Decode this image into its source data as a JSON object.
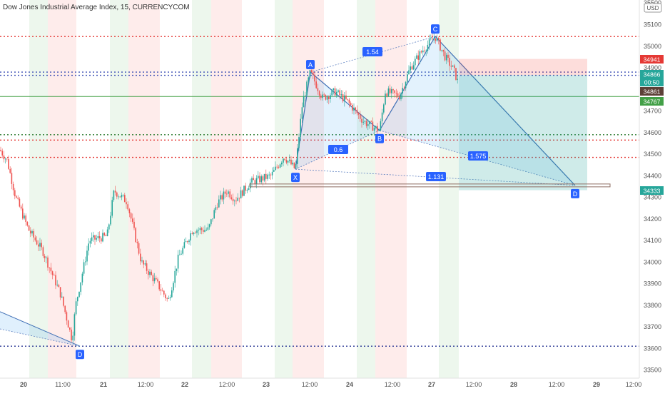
{
  "chart_data": {
    "type": "candlestick",
    "title": "Dow Jones Industrial Average Index, 15, CURRENCYCOM",
    "currency": "USD",
    "ylim": [
      33500,
      35500
    ],
    "y_ticks": [
      33500,
      33600,
      33700,
      33800,
      33900,
      34000,
      34100,
      34200,
      34300,
      34400,
      34500,
      34600,
      34700,
      34800,
      34900,
      35000,
      35100,
      35500
    ],
    "x_ticks": [
      "20",
      "11:00",
      "21",
      "12:00",
      "22",
      "12:00",
      "23",
      "12:00",
      "24",
      "12:00",
      "27",
      "12:00",
      "28",
      "12:00",
      "29",
      "12:00"
    ],
    "price_labels": [
      {
        "value": "34941",
        "color": "#e53935"
      },
      {
        "value": "34866",
        "color": "#26a69a"
      },
      {
        "value": "00:50",
        "color": "#26a69a"
      },
      {
        "value": "34861",
        "color": "#5d4037"
      },
      {
        "value": "34767",
        "color": "#43a047"
      },
      {
        "value": "34333",
        "color": "#26a69a"
      }
    ],
    "harmonic_points": [
      {
        "label": "X",
        "price": 34430
      },
      {
        "label": "A",
        "price": 34880
      },
      {
        "label": "B",
        "price": 34610
      },
      {
        "label": "C",
        "price": 35045
      },
      {
        "label": "D",
        "price": 34355
      }
    ],
    "prior_pattern_label": "D",
    "ratios": [
      "1.54",
      "0.6",
      "1.575",
      "1.131"
    ],
    "horizontal_levels": [
      {
        "price": 35045,
        "color": "#e53935",
        "style": "dotted"
      },
      {
        "price": 34880,
        "color": "#3f51b5",
        "style": "dotted"
      },
      {
        "price": 34865,
        "color": "#3f51b5",
        "style": "dotted"
      },
      {
        "price": 34767,
        "color": "#43a047",
        "style": "solid"
      },
      {
        "price": 34590,
        "color": "#2e7d32",
        "style": "dotted"
      },
      {
        "price": 34565,
        "color": "#e53935",
        "style": "dotted"
      },
      {
        "price": 34485,
        "color": "#e53935",
        "style": "dotted"
      },
      {
        "price": 33610,
        "color": "#283593",
        "style": "dotted"
      }
    ]
  }
}
